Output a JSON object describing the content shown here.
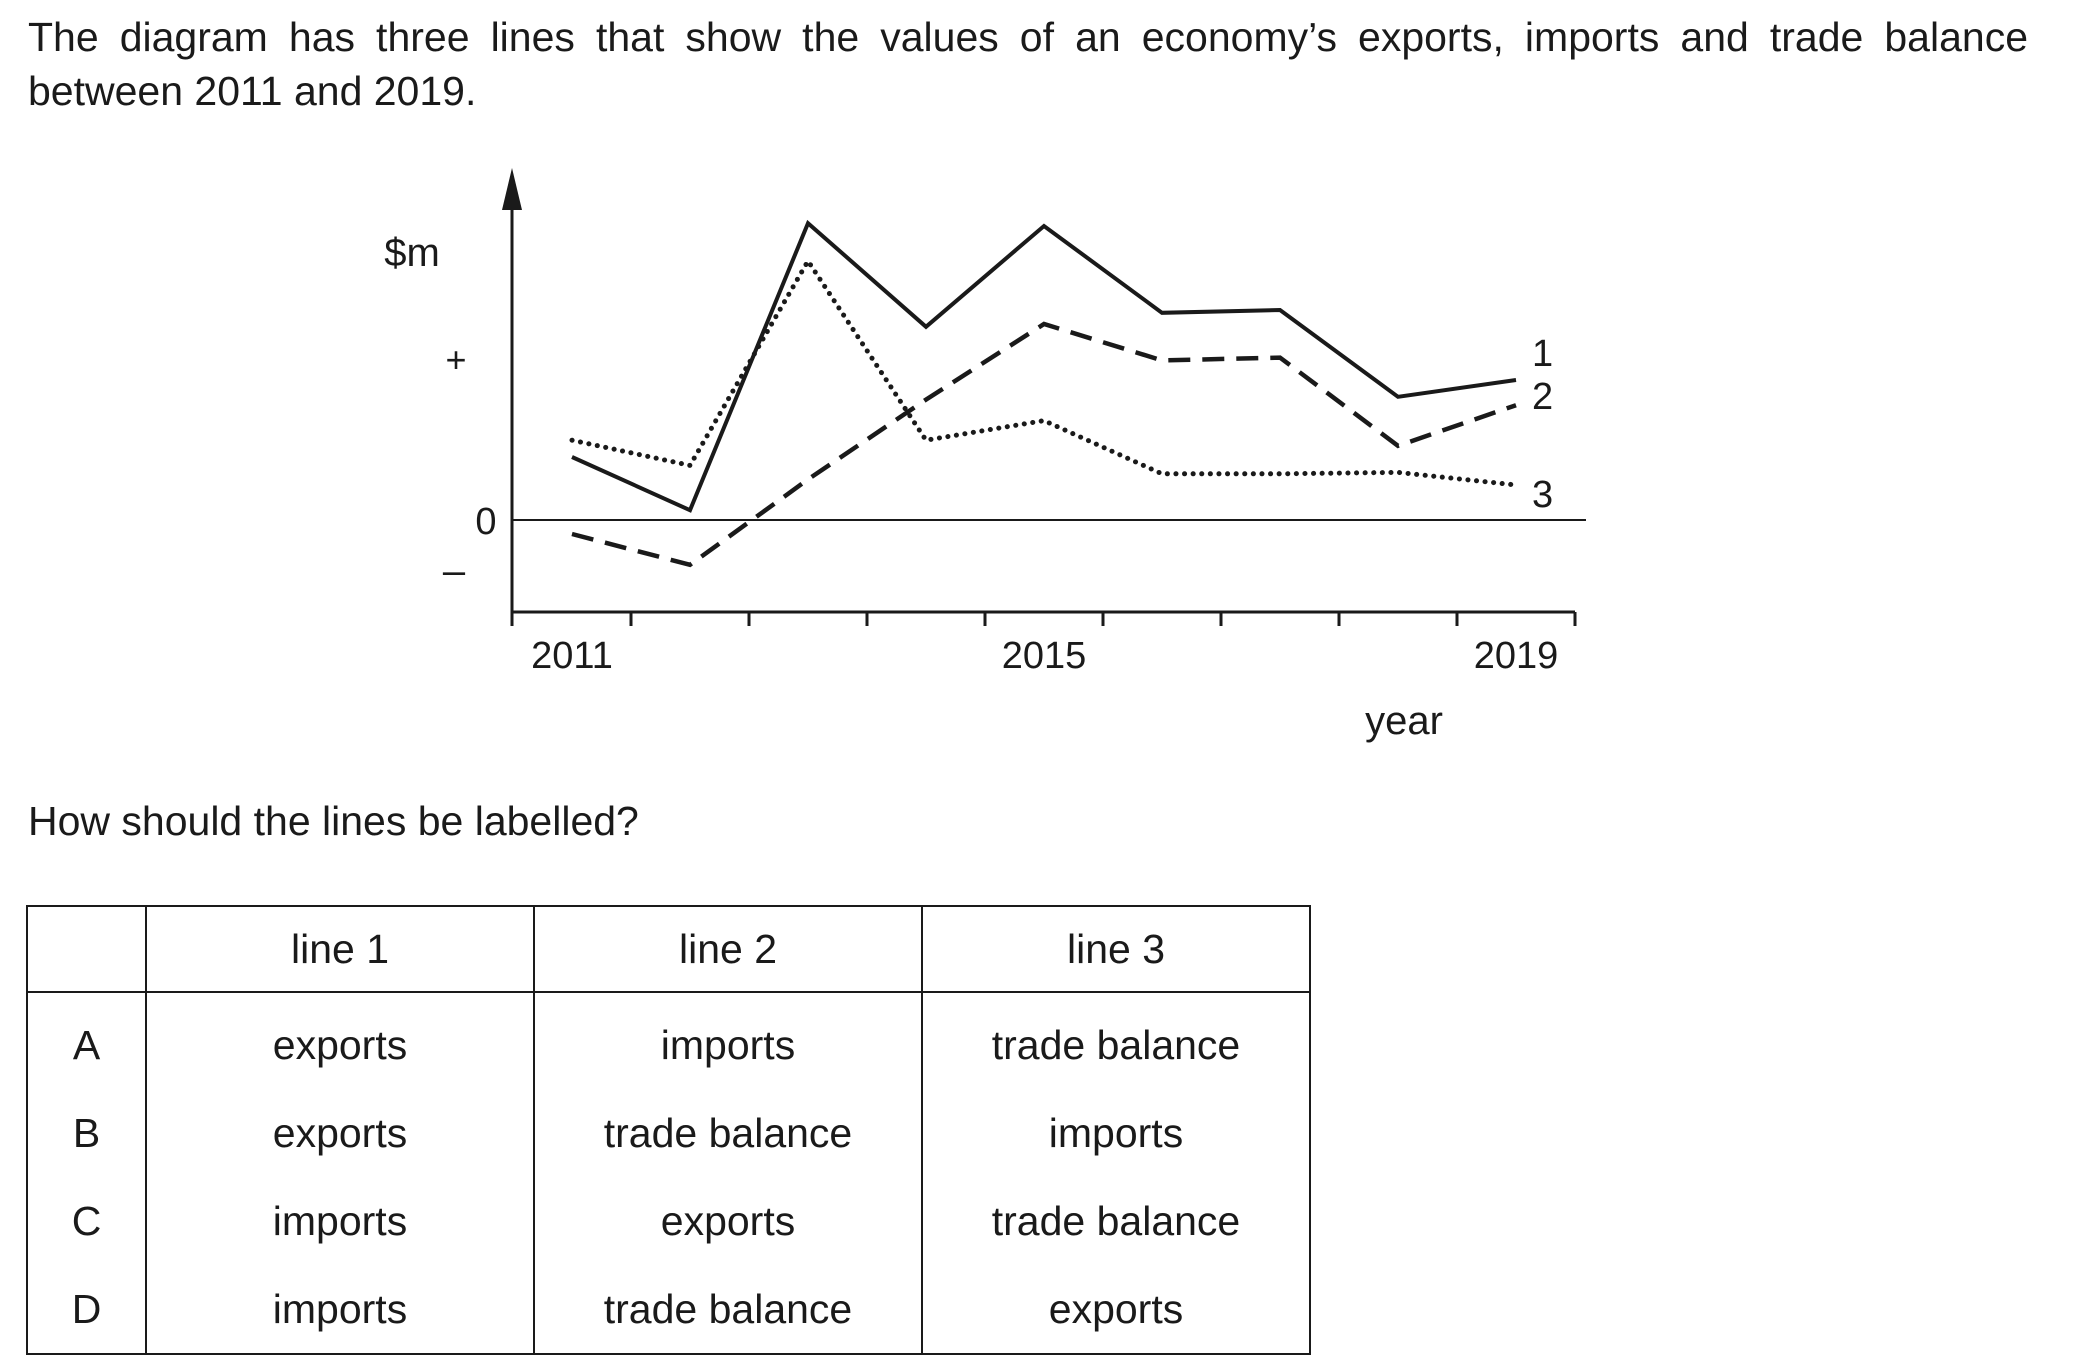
{
  "intro_text": "The diagram has three lines that show the values of an economy’s exports, imports and trade balance between 2011 and 2019.",
  "question_text": "How should the lines be labelled?",
  "chart_data": {
    "type": "line",
    "xlabel": "year",
    "ylabel": "$m",
    "x": [
      2011,
      2012,
      2013,
      2014,
      2015,
      2016,
      2017,
      2018,
      2019
    ],
    "x_tick_labels": [
      "2011",
      "2015",
      "2019"
    ],
    "y_marks": {
      "plus": "+",
      "zero": "0",
      "minus": "–"
    },
    "ylim": [
      -0.65,
      2.55
    ],
    "series": [
      {
        "name": "1",
        "style": "solid",
        "values": [
          0.45,
          0.07,
          2.12,
          1.38,
          2.1,
          1.48,
          1.5,
          0.88,
          1.0
        ]
      },
      {
        "name": "2",
        "style": "dashed",
        "values": [
          -0.1,
          -0.32,
          0.29,
          0.86,
          1.4,
          1.14,
          1.16,
          0.53,
          0.82
        ]
      },
      {
        "name": "3",
        "style": "dotted",
        "values": [
          0.57,
          0.39,
          1.85,
          0.57,
          0.71,
          0.33,
          0.33,
          0.34,
          0.25
        ]
      }
    ]
  },
  "table": {
    "headers": [
      "",
      "line 1",
      "line 2",
      "line 3"
    ],
    "rows": [
      {
        "key": "A",
        "line1": "exports",
        "line2": "imports",
        "line3": "trade balance"
      },
      {
        "key": "B",
        "line1": "exports",
        "line2": "trade balance",
        "line3": "imports"
      },
      {
        "key": "C",
        "line1": "imports",
        "line2": "exports",
        "line3": "trade balance"
      },
      {
        "key": "D",
        "line1": "imports",
        "line2": "trade balance",
        "line3": "exports"
      }
    ]
  }
}
